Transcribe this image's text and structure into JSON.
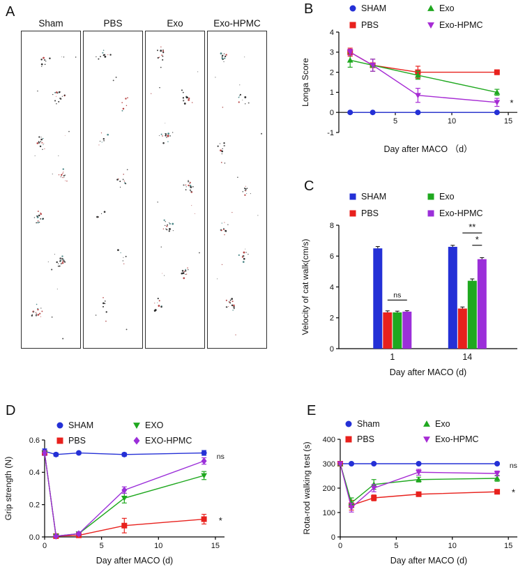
{
  "panels": {
    "a": {
      "letter": "A",
      "columns": [
        "Sham",
        "PBS",
        "Exo",
        "Exo-HPMC"
      ]
    },
    "b": {
      "letter": "B"
    },
    "c": {
      "letter": "C"
    },
    "d": {
      "letter": "D"
    },
    "e": {
      "letter": "E"
    }
  },
  "chart_data": [
    {
      "panel": "B",
      "type": "line",
      "title": "",
      "ylabel": "Longa Score",
      "xlabel": "Day after MACO （d）",
      "xlim": [
        0,
        15.8
      ],
      "ylim": [
        -1,
        4
      ],
      "xticks": [
        5,
        10,
        15
      ],
      "xtick_labels": [
        "5",
        "10",
        "15"
      ],
      "yticks": [
        -1,
        0,
        1,
        2,
        3,
        4
      ],
      "ytick_labels": [
        "-1",
        "0",
        "1",
        "2",
        "3",
        "4"
      ],
      "x_axis_at": 0,
      "x": [
        1,
        3,
        7,
        14
      ],
      "series": [
        {
          "name": "SHAM",
          "color": "#2430d6",
          "marker": "circle",
          "values": [
            0,
            0,
            0,
            0
          ],
          "errors": [
            0.04,
            0.04,
            0.04,
            0.04
          ]
        },
        {
          "name": "PBS",
          "color": "#e8211d",
          "marker": "square",
          "values": [
            3.0,
            2.35,
            2.0,
            2.0
          ],
          "errors": [
            0.2,
            0.3,
            0.3,
            0.12
          ]
        },
        {
          "name": "Exo",
          "color": "#1fa81f",
          "marker": "triangle-up",
          "values": [
            2.6,
            2.35,
            1.85,
            1.0
          ],
          "errors": [
            0.35,
            0.3,
            0.2,
            0.15
          ]
        },
        {
          "name": "Exo-HPMC",
          "color": "#a62bd4",
          "marker": "triangle-down",
          "values": [
            3.0,
            2.35,
            0.85,
            0.5
          ],
          "errors": [
            0.15,
            0.3,
            0.35,
            0.2
          ]
        }
      ],
      "annotations": [
        {
          "text": "*",
          "x": 15.3,
          "y": 0.45
        }
      ],
      "grid": false,
      "legend_position": "top-two-columns"
    },
    {
      "panel": "C",
      "type": "bar",
      "title": "",
      "ylabel": "Velocity of cat walk(cm/s)",
      "xlabel": "Day after MACO (d)",
      "categories": [
        "1",
        "14"
      ],
      "ylim": [
        0,
        8
      ],
      "yticks": [
        0,
        2,
        4,
        6,
        8
      ],
      "ytick_labels": [
        "0",
        "2",
        "4",
        "6",
        "8"
      ],
      "series": [
        {
          "name": "SHAM",
          "color": "#2430d6",
          "marker": "square",
          "values": [
            6.5,
            6.6
          ],
          "errors": [
            0.12,
            0.1
          ]
        },
        {
          "name": "PBS",
          "color": "#e8211d",
          "marker": "square",
          "values": [
            2.35,
            2.6
          ],
          "errors": [
            0.1,
            0.1
          ]
        },
        {
          "name": "Exo",
          "color": "#1fa81f",
          "marker": "square",
          "values": [
            2.35,
            4.4
          ],
          "errors": [
            0.08,
            0.12
          ]
        },
        {
          "name": "Exo-HPMC",
          "color": "#9b2fd9",
          "marker": "square",
          "values": [
            2.4,
            5.8
          ],
          "errors": [
            0.06,
            0.1
          ]
        }
      ],
      "sig": [
        {
          "group": 0,
          "from": 1,
          "to": 3,
          "y": 3.15,
          "label": "ns"
        },
        {
          "group": 1,
          "from": 1,
          "to": 3,
          "y": 7.5,
          "label": "**"
        },
        {
          "group": 1,
          "from": 2,
          "to": 3,
          "y": 6.7,
          "label": "*"
        }
      ],
      "grid": false,
      "legend_position": "top-two-columns"
    },
    {
      "panel": "D",
      "type": "line",
      "title": "",
      "ylabel": "Grip strength (N)",
      "xlabel": "Day after MACO (d)",
      "xlim": [
        0,
        15.8
      ],
      "ylim": [
        0,
        0.6
      ],
      "xticks": [
        0,
        5,
        10,
        15
      ],
      "xtick_labels": [
        "0",
        "5",
        "10",
        "15"
      ],
      "yticks": [
        0,
        0.2,
        0.4,
        0.6
      ],
      "ytick_labels": [
        "0.0",
        "0.2",
        "0.4",
        "0.6"
      ],
      "x_axis_at": 0,
      "x": [
        0,
        1,
        3,
        7,
        14
      ],
      "series": [
        {
          "name": "SHAM",
          "color": "#2430d6",
          "marker": "circle",
          "values": [
            0.53,
            0.51,
            0.52,
            0.51,
            0.52
          ],
          "errors": [
            0.015,
            0.01,
            0.008,
            0.01,
            0.015
          ]
        },
        {
          "name": "PBS",
          "color": "#e8211d",
          "marker": "square",
          "values": [
            0.52,
            0.005,
            0.01,
            0.07,
            0.11
          ],
          "errors": [
            0.015,
            0.004,
            0.006,
            0.045,
            0.03
          ]
        },
        {
          "name": "EXO",
          "color": "#1fa81f",
          "marker": "triangle-down",
          "values": [
            0.52,
            0.005,
            0.02,
            0.24,
            0.38
          ],
          "errors": [
            0.015,
            0.004,
            0.01,
            0.03,
            0.025
          ]
        },
        {
          "name": "EXO-HPMC",
          "color": "#9b2fd9",
          "marker": "diamond",
          "values": [
            0.52,
            0.005,
            0.02,
            0.29,
            0.47
          ],
          "errors": [
            0.015,
            0.004,
            0.01,
            0.02,
            0.02
          ]
        }
      ],
      "annotations": [
        {
          "text": "ns",
          "x": 15.45,
          "y": 0.5
        },
        {
          "text": "*",
          "x": 15.45,
          "y": 0.1
        }
      ],
      "grid": false,
      "legend_position": "top-two-columns"
    },
    {
      "panel": "E",
      "type": "line",
      "title": "",
      "ylabel": "Rota-rod walking test (s)",
      "xlabel": "Day after MACO (d)",
      "xlim": [
        0,
        15.8
      ],
      "ylim": [
        0,
        400
      ],
      "xticks": [
        0,
        5,
        10,
        15
      ],
      "xtick_labels": [
        "0",
        "5",
        "10",
        "15"
      ],
      "yticks": [
        0,
        100,
        200,
        300,
        400
      ],
      "ytick_labels": [
        "0",
        "100",
        "200",
        "300",
        "400"
      ],
      "x_axis_at": 0,
      "x": [
        0,
        1,
        3,
        7,
        14
      ],
      "series": [
        {
          "name": "Sham",
          "color": "#2430d6",
          "marker": "circle",
          "values": [
            300,
            300,
            300,
            300,
            300
          ],
          "errors": [
            4,
            4,
            4,
            4,
            4
          ]
        },
        {
          "name": "PBS",
          "color": "#e8211d",
          "marker": "square",
          "values": [
            300,
            130,
            160,
            175,
            185
          ],
          "errors": [
            5,
            20,
            12,
            8,
            8
          ]
        },
        {
          "name": "Exo",
          "color": "#1fa81f",
          "marker": "triangle-up",
          "values": [
            300,
            140,
            215,
            235,
            240
          ],
          "errors": [
            5,
            20,
            20,
            10,
            12
          ]
        },
        {
          "name": "Exo-HPMC",
          "color": "#a62bd4",
          "marker": "triangle-down",
          "values": [
            300,
            120,
            200,
            265,
            260
          ],
          "errors": [
            5,
            18,
            15,
            12,
            10
          ]
        }
      ],
      "annotations": [
        {
          "text": "ns",
          "x": 15.45,
          "y": 295
        },
        {
          "text": "*",
          "x": 15.45,
          "y": 182
        }
      ],
      "grid": false,
      "legend_position": "top-two-columns"
    }
  ]
}
